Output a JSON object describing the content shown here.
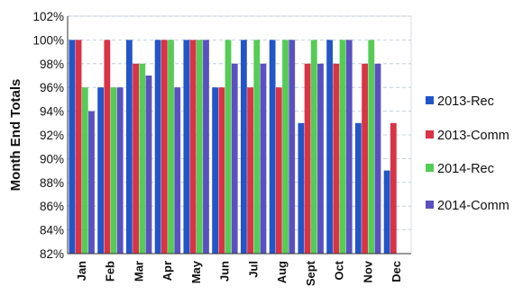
{
  "chart_data": {
    "type": "bar",
    "title": "",
    "xlabel": "",
    "ylabel": "Month End Totals",
    "ylim": [
      0.82,
      1.02
    ],
    "yticks": [
      "82%",
      "84%",
      "86%",
      "88%",
      "90%",
      "92%",
      "94%",
      "96%",
      "98%",
      "100%",
      "102%"
    ],
    "categories": [
      "Jan",
      "Feb",
      "Mar",
      "Apr",
      "May",
      "Jun",
      "Jul",
      "Aug",
      "Sept",
      "Oct",
      "Nov",
      "Dec"
    ],
    "grid": true,
    "legend_position": "right",
    "series": [
      {
        "name": "2013-Rec",
        "color": "#2255c8",
        "values": [
          1.0,
          0.96,
          1.0,
          1.0,
          1.0,
          0.96,
          1.0,
          1.0,
          0.93,
          1.0,
          0.93,
          0.89
        ]
      },
      {
        "name": "2013-Comm",
        "color": "#d93346",
        "values": [
          1.0,
          1.0,
          0.98,
          1.0,
          1.0,
          0.96,
          0.96,
          0.96,
          0.98,
          0.98,
          0.98,
          0.93
        ]
      },
      {
        "name": "2014-Rec",
        "color": "#55cc55",
        "values": [
          0.96,
          0.96,
          0.98,
          1.0,
          1.0,
          1.0,
          1.0,
          1.0,
          1.0,
          1.0,
          1.0,
          null
        ]
      },
      {
        "name": "2014-Comm",
        "color": "#5a50c0",
        "values": [
          0.94,
          0.96,
          0.97,
          0.96,
          1.0,
          0.98,
          0.98,
          1.0,
          0.98,
          1.0,
          0.98,
          null
        ]
      }
    ]
  }
}
